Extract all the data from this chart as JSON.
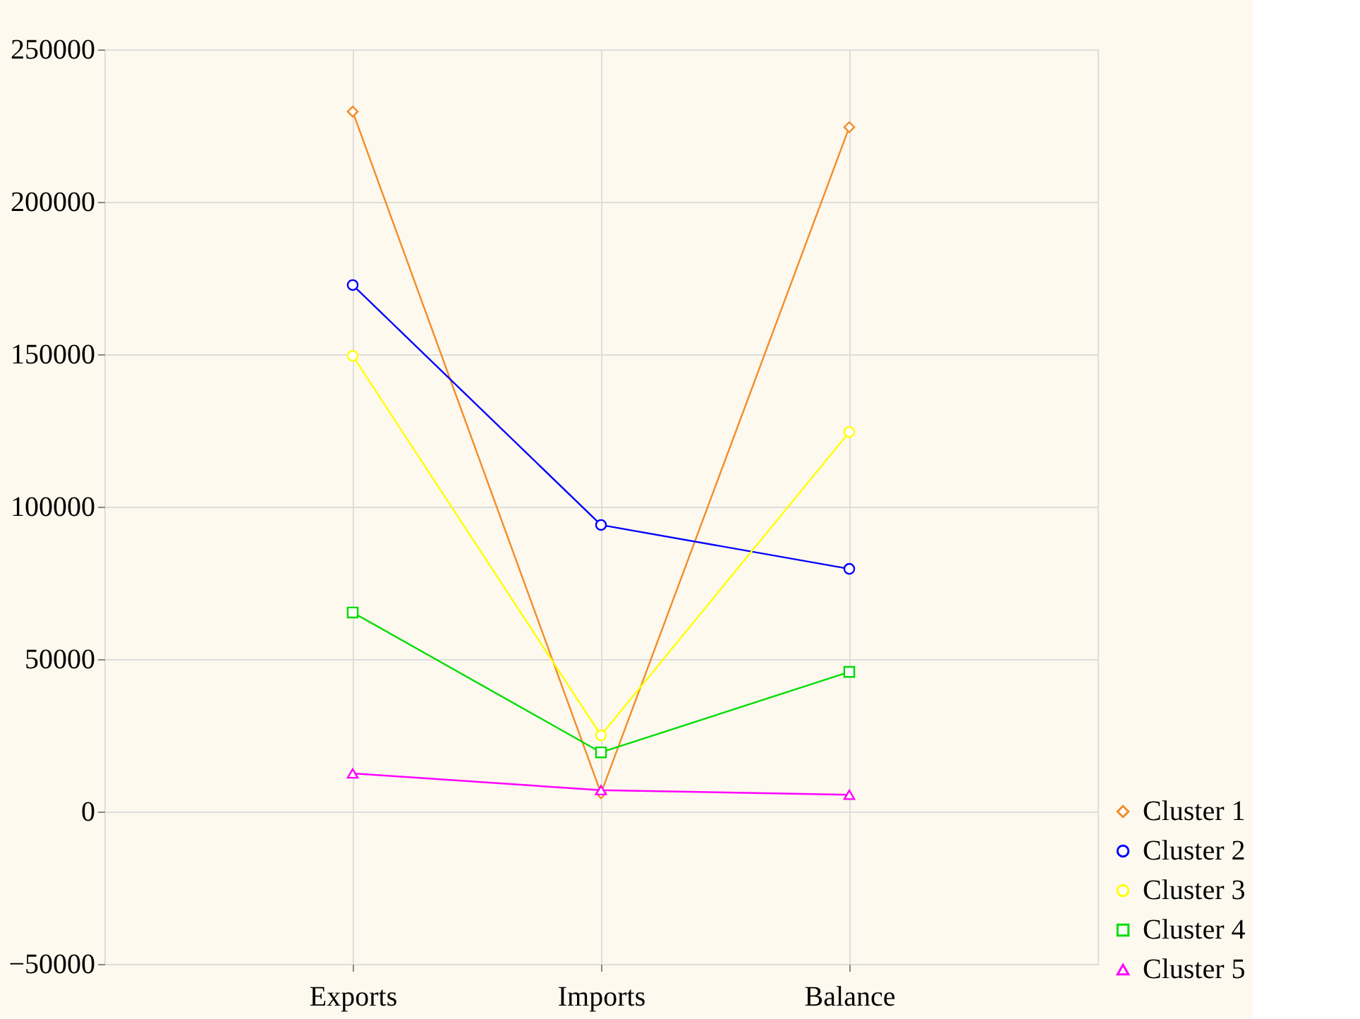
{
  "chart_data": {
    "type": "line",
    "categories": [
      "Exports",
      "Imports",
      "Balance"
    ],
    "series": [
      {
        "name": "Cluster 1",
        "color": "#f28c28",
        "marker": "diamond",
        "values": [
          229600,
          6000,
          224500
        ]
      },
      {
        "name": "Cluster 2",
        "color": "#0000ff",
        "marker": "circle",
        "values": [
          172700,
          94000,
          79600
        ]
      },
      {
        "name": "Cluster 3",
        "color": "#ffff00",
        "marker": "circle",
        "values": [
          149500,
          25000,
          124500
        ]
      },
      {
        "name": "Cluster 4",
        "color": "#00dd00",
        "marker": "square",
        "values": [
          65300,
          19400,
          45800
        ]
      },
      {
        "name": "Cluster 5",
        "color": "#ff00ff",
        "marker": "triangle",
        "values": [
          12500,
          7000,
          5500
        ]
      }
    ],
    "ylim": [
      -50000,
      250000
    ],
    "yticks": [
      -50000,
      0,
      50000,
      100000,
      150000,
      200000,
      250000
    ],
    "grid": true,
    "legend": "bottom right",
    "line_style": "solid"
  }
}
